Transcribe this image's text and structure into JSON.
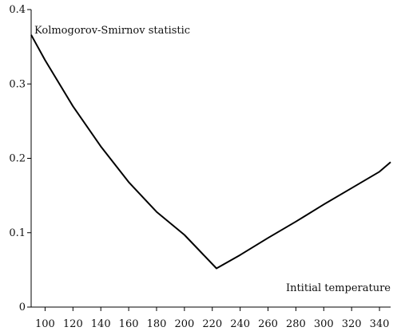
{
  "chart_data": {
    "type": "line",
    "title": "",
    "xlabel": "",
    "ylabel": "",
    "xlim": [
      90,
      348
    ],
    "ylim": [
      0,
      0.4
    ],
    "x_ticks": [
      100,
      120,
      140,
      160,
      180,
      200,
      220,
      240,
      260,
      280,
      300,
      320,
      340
    ],
    "x_tick_labels": [
      "100",
      "120",
      "140",
      "160",
      "180",
      "200",
      "220",
      "240",
      "260",
      "280",
      "300",
      "320",
      "340"
    ],
    "y_ticks": [
      0,
      0.1,
      0.2,
      0.3,
      0.4
    ],
    "y_tick_labels": [
      "0",
      "0.1",
      "0.2",
      "0.3",
      "0.4"
    ],
    "grid": false,
    "legend": "none",
    "annotations": [
      {
        "text": "Kolmogorov-Smirnov statistic"
      },
      {
        "text": "Intitial temperature"
      }
    ],
    "series": [
      {
        "x": [
          90,
          100,
          120,
          140,
          160,
          180,
          200,
          223,
          240,
          260,
          280,
          300,
          320,
          340,
          348
        ],
        "values": [
          0.366,
          0.332,
          0.27,
          0.216,
          0.168,
          0.128,
          0.097,
          0.052,
          0.07,
          0.093,
          0.115,
          0.138,
          0.16,
          0.182,
          0.195
        ]
      }
    ]
  }
}
